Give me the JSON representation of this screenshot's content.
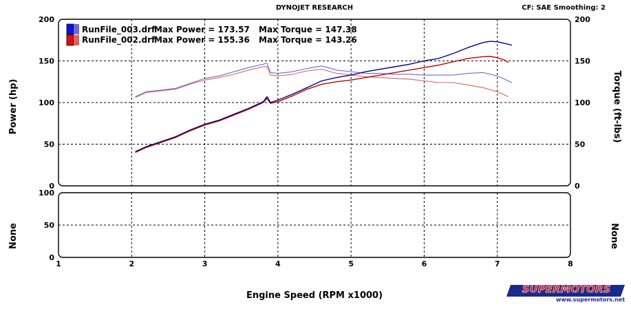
{
  "header": {
    "title": "DYNOJET RESEARCH",
    "cf_label": "CF: SAE  Smoothing: 2"
  },
  "watermark": {
    "brand": "SUPERMOTORS",
    "url": "www.supermotors.net"
  },
  "colors": {
    "run1_power": "#000080",
    "run1_torque": "#6a6ad8",
    "run2_power": "#c00000",
    "run2_torque": "#e06060",
    "grid": "#000000",
    "watermark_red": "#d81818"
  },
  "chart_data": [
    {
      "type": "line",
      "title": "",
      "xlabel": "Engine Speed (RPM x1000)",
      "ylabel_left": "Power (hp)",
      "ylabel_right": "Torque (ft-lbs)",
      "xlim": [
        1,
        8
      ],
      "ylim_left": [
        0,
        200
      ],
      "ylim_right": [
        0,
        200
      ],
      "x_ticks": [
        "1",
        "2",
        "3",
        "4",
        "5",
        "6",
        "7",
        "8"
      ],
      "y_ticks_left": [
        "0",
        "50",
        "100",
        "150",
        "200"
      ],
      "y_ticks_right": [
        "0",
        "50",
        "100",
        "150",
        "200"
      ],
      "grid": true,
      "legend_position": "top-left",
      "legend": [
        {
          "file": "RunFile_003.drf",
          "power_text": "Max Power = 173.57",
          "torque_text": "Max Torque = 147.38"
        },
        {
          "file": "RunFile_002.drf",
          "power_text": "Max Power = 155.36",
          "torque_text": "Max Torque = 143.26"
        }
      ],
      "series": [
        {
          "kind": "power",
          "run": 1,
          "axis": "left",
          "x": [
            2.05,
            2.2,
            2.4,
            2.6,
            2.8,
            3.0,
            3.2,
            3.4,
            3.6,
            3.8,
            3.85,
            3.9,
            4.0,
            4.2,
            4.4,
            4.6,
            4.8,
            5.0,
            5.2,
            5.4,
            5.6,
            5.8,
            6.0,
            6.2,
            6.4,
            6.6,
            6.8,
            6.9,
            7.0,
            7.1,
            7.2
          ],
          "y": [
            41,
            47,
            53,
            59,
            67,
            74,
            79,
            86,
            93,
            101,
            107,
            100,
            103,
            110,
            118,
            126,
            130,
            133,
            137,
            140,
            143,
            146,
            150,
            153,
            159,
            166,
            172,
            173.5,
            173,
            171,
            169
          ]
        },
        {
          "kind": "power",
          "run": 2,
          "axis": "left",
          "x": [
            2.05,
            2.2,
            2.4,
            2.6,
            2.8,
            3.0,
            3.2,
            3.4,
            3.6,
            3.8,
            3.85,
            3.9,
            4.0,
            4.2,
            4.4,
            4.6,
            4.8,
            5.0,
            5.2,
            5.4,
            5.6,
            5.8,
            6.0,
            6.2,
            6.4,
            6.6,
            6.8,
            6.9,
            7.0,
            7.1,
            7.15
          ],
          "y": [
            40,
            46,
            52,
            58,
            66,
            73,
            78,
            85,
            92,
            100,
            105,
            99,
            101,
            108,
            116,
            122,
            125,
            127,
            130,
            133,
            136,
            139,
            142,
            145,
            149,
            153,
            155,
            155.4,
            154,
            151,
            148
          ]
        },
        {
          "kind": "torque",
          "run": 1,
          "axis": "right",
          "x": [
            2.05,
            2.2,
            2.4,
            2.6,
            2.8,
            3.0,
            3.2,
            3.4,
            3.6,
            3.8,
            3.85,
            3.9,
            4.0,
            4.2,
            4.4,
            4.6,
            4.8,
            5.0,
            5.2,
            5.4,
            5.6,
            5.8,
            6.0,
            6.2,
            6.4,
            6.6,
            6.8,
            7.0,
            7.2
          ],
          "y": [
            107,
            113,
            115,
            117,
            123,
            129,
            132,
            137,
            142,
            146,
            147.4,
            136,
            135,
            137,
            141,
            144,
            139,
            137,
            135,
            135,
            134,
            134,
            133,
            133,
            133,
            135,
            136,
            132,
            124
          ]
        },
        {
          "kind": "torque",
          "run": 2,
          "axis": "right",
          "x": [
            2.05,
            2.2,
            2.4,
            2.6,
            2.8,
            3.0,
            3.2,
            3.4,
            3.6,
            3.8,
            3.85,
            3.9,
            4.0,
            4.2,
            4.4,
            4.6,
            4.8,
            5.0,
            5.2,
            5.4,
            5.6,
            5.8,
            6.0,
            6.2,
            6.4,
            6.6,
            6.8,
            7.0,
            7.15
          ],
          "y": [
            106,
            112,
            114,
            116,
            122,
            127,
            130,
            134,
            139,
            143,
            143.3,
            133,
            132,
            134,
            138,
            140,
            135,
            133,
            131,
            130,
            129,
            128,
            126,
            124,
            124,
            121,
            118,
            113,
            107
          ]
        }
      ]
    },
    {
      "type": "line",
      "title": "",
      "xlabel": "Engine Speed (RPM x1000)",
      "ylabel_left": "None",
      "ylabel_right": "None",
      "xlim": [
        1,
        8
      ],
      "ylim_left": [
        0,
        100
      ],
      "y_ticks_left": [
        "0",
        "50",
        "100"
      ],
      "grid": true,
      "series": []
    }
  ]
}
